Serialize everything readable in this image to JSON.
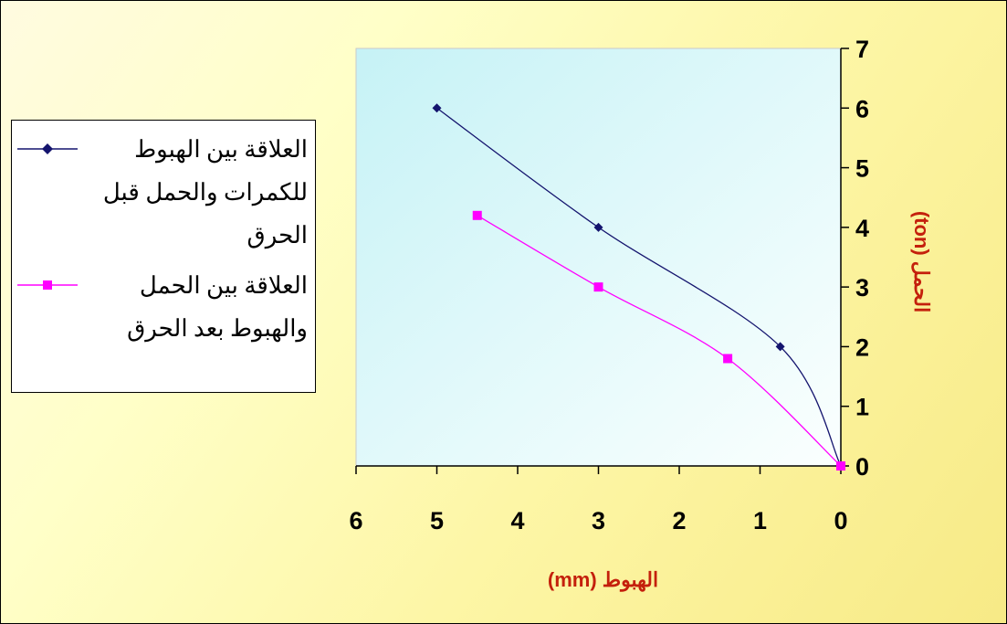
{
  "chart_data": {
    "type": "line",
    "xlabel": "الهبوط (mm)",
    "ylabel": "الحمل (ton)",
    "x_reversed": true,
    "xlim": [
      0,
      6
    ],
    "ylim": [
      0,
      7
    ],
    "xticks": [
      "0",
      "1",
      "2",
      "3",
      "4",
      "5",
      "6"
    ],
    "yticks": [
      "0",
      "1",
      "2",
      "3",
      "4",
      "5",
      "6",
      "7"
    ],
    "grid": false,
    "legend_position": "left",
    "plot_area_color": "gradient light cyan",
    "series": [
      {
        "name": "العلاقة بين الهبوط للكمرات والحمل قبل الحرق",
        "color": "#14146e",
        "marker": "diamond",
        "x": [
          0,
          0.75,
          3,
          5
        ],
        "y": [
          0,
          2,
          4,
          6
        ]
      },
      {
        "name": "العلاقة بين الحمل والهبوط بعد الحرق",
        "color": "#ff00ff",
        "marker": "square",
        "x": [
          0,
          1.4,
          3,
          4.5
        ],
        "y": [
          0,
          1.8,
          3,
          4.2
        ]
      }
    ]
  }
}
